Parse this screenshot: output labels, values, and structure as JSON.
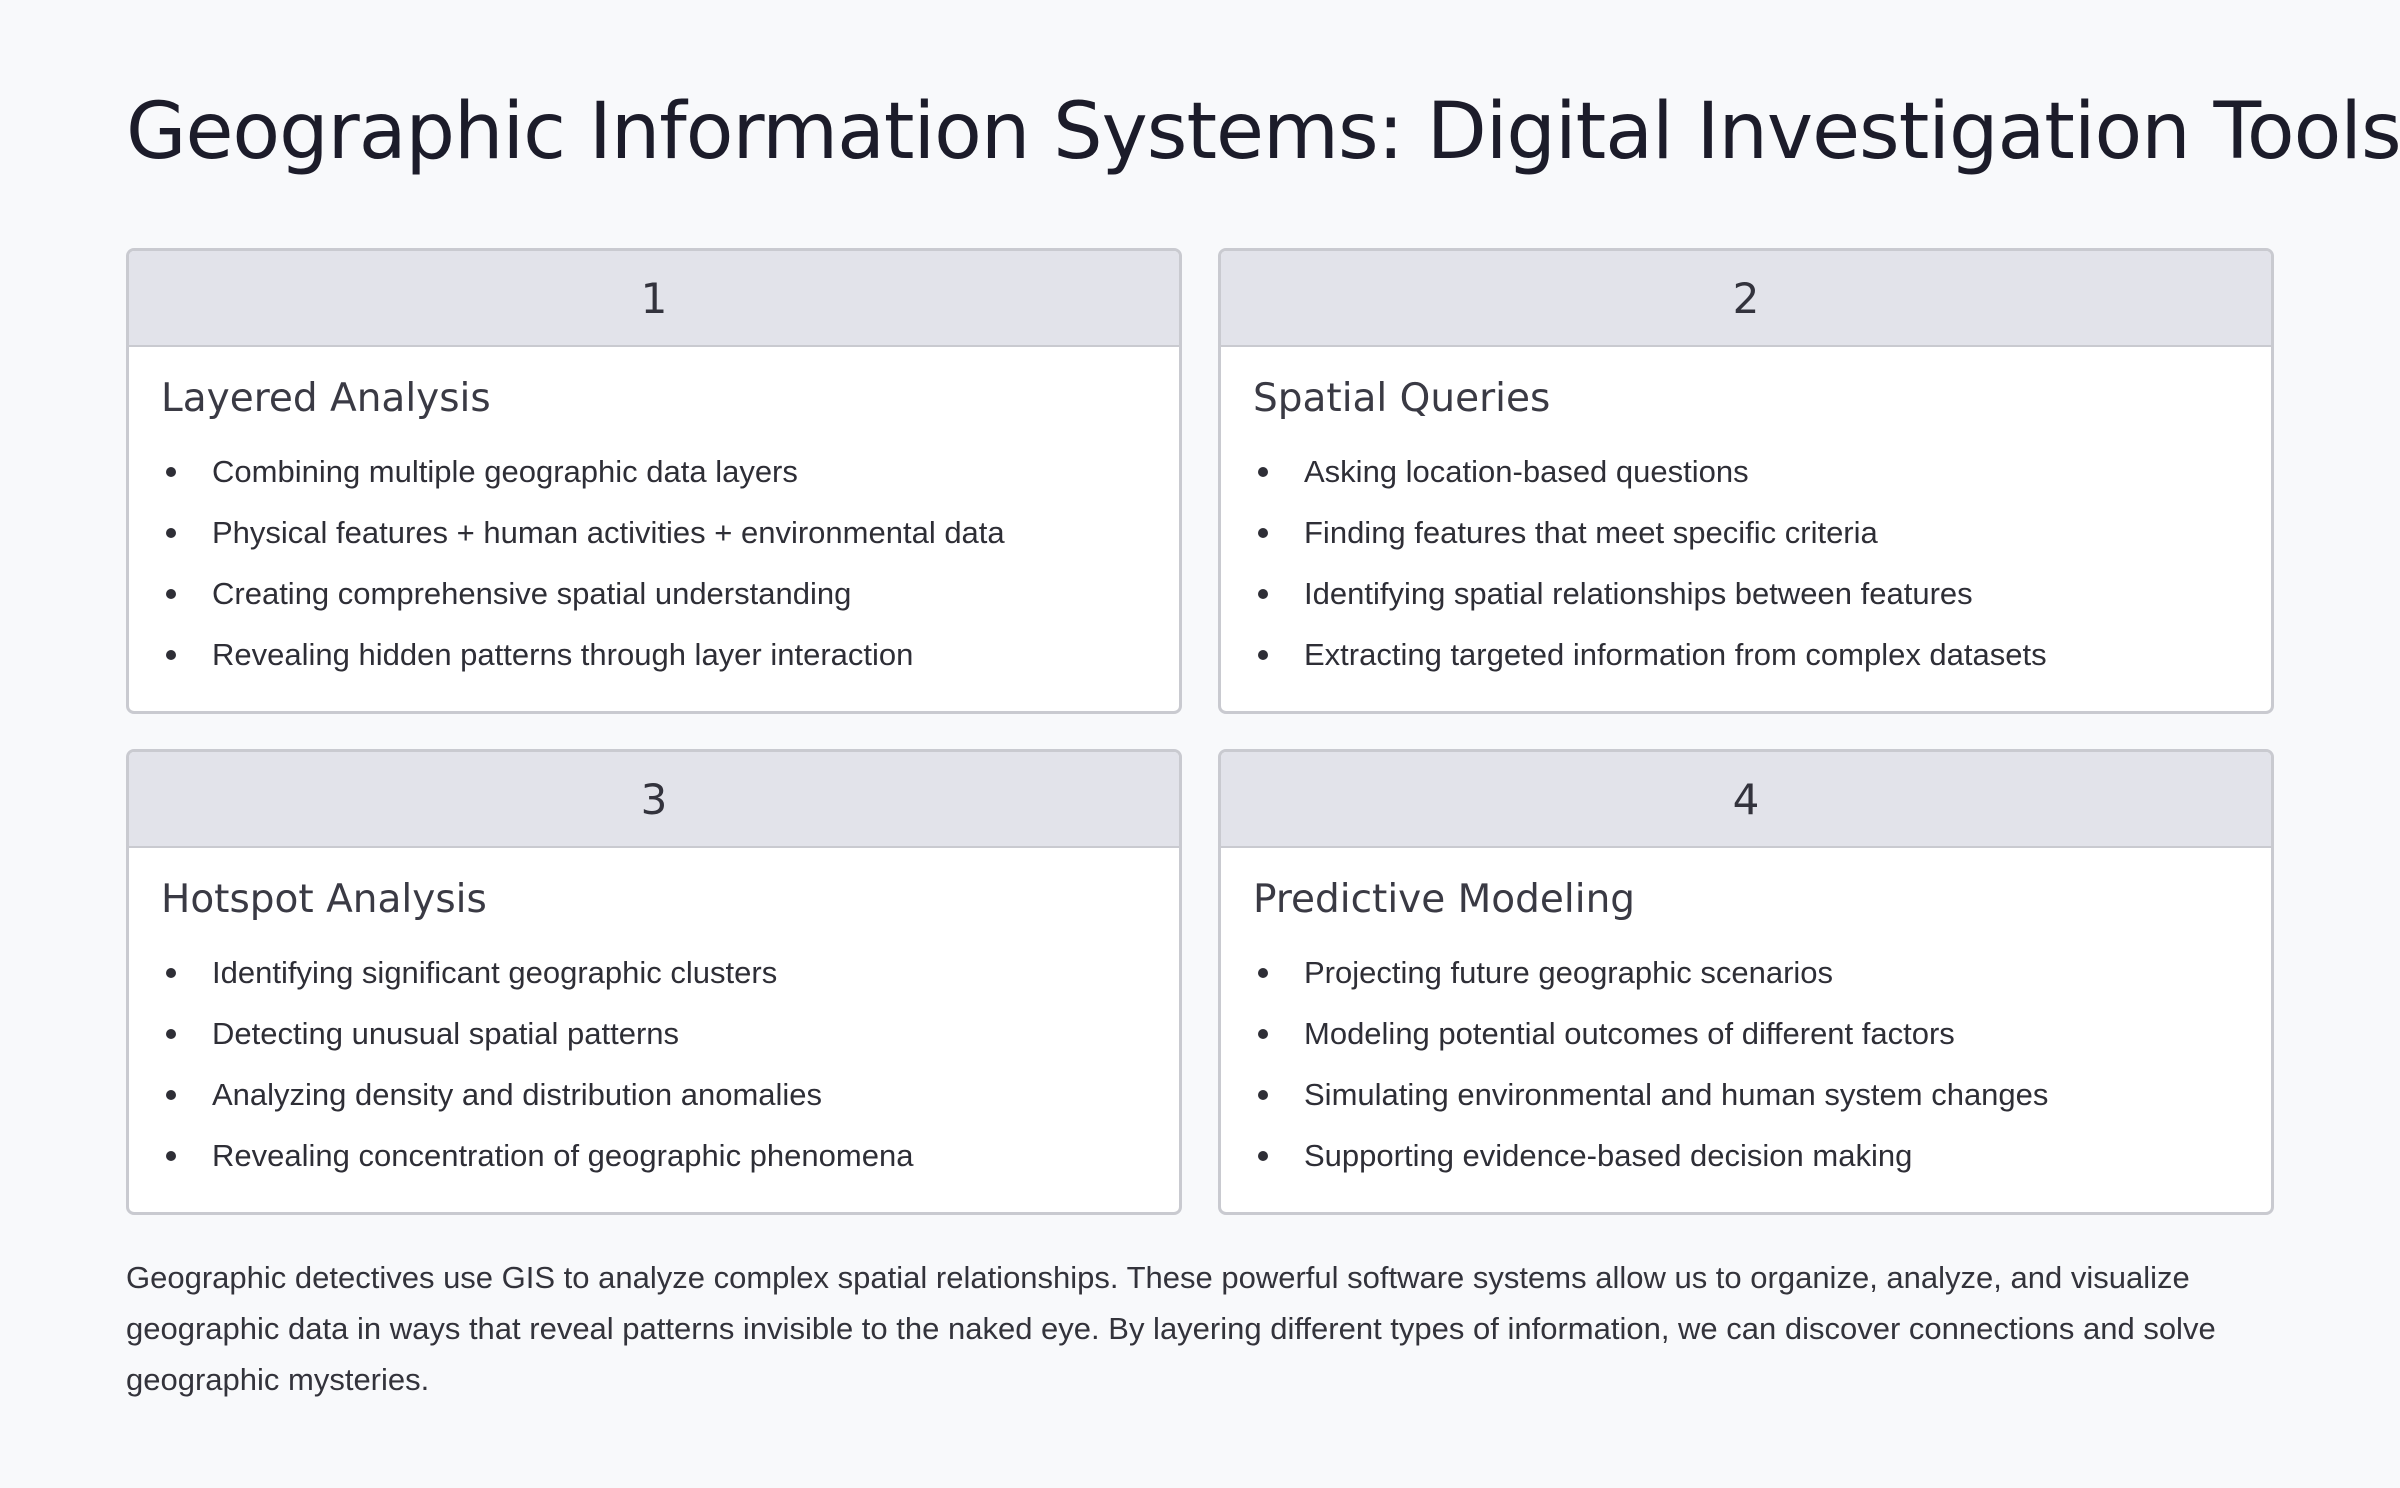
{
  "title": "Geographic Information Systems: Digital Investigation Tools",
  "cards": [
    {
      "number": "1",
      "heading": "Layered Analysis",
      "bullets": [
        "Combining multiple geographic data layers",
        "Physical features + human activities + environmental data",
        "Creating comprehensive spatial understanding",
        "Revealing hidden patterns through layer interaction"
      ]
    },
    {
      "number": "2",
      "heading": "Spatial Queries",
      "bullets": [
        "Asking location-based questions",
        "Finding features that meet specific criteria",
        "Identifying spatial relationships between features",
        "Extracting targeted information from complex datasets"
      ]
    },
    {
      "number": "3",
      "heading": "Hotspot Analysis",
      "bullets": [
        "Identifying significant geographic clusters",
        "Detecting unusual spatial patterns",
        "Analyzing density and distribution anomalies",
        "Revealing concentration of geographic phenomena"
      ]
    },
    {
      "number": "4",
      "heading": "Predictive Modeling",
      "bullets": [
        "Projecting future geographic scenarios",
        "Modeling potential outcomes of different factors",
        "Simulating environmental and human system changes",
        "Supporting evidence-based decision making"
      ]
    }
  ],
  "summary": "Geographic detectives use GIS to analyze complex spatial relationships. These powerful software systems allow us to organize, analyze, and visualize geographic data in ways that reveal patterns invisible to the naked eye. By layering different types of information, we can discover connections and solve geographic mysteries."
}
